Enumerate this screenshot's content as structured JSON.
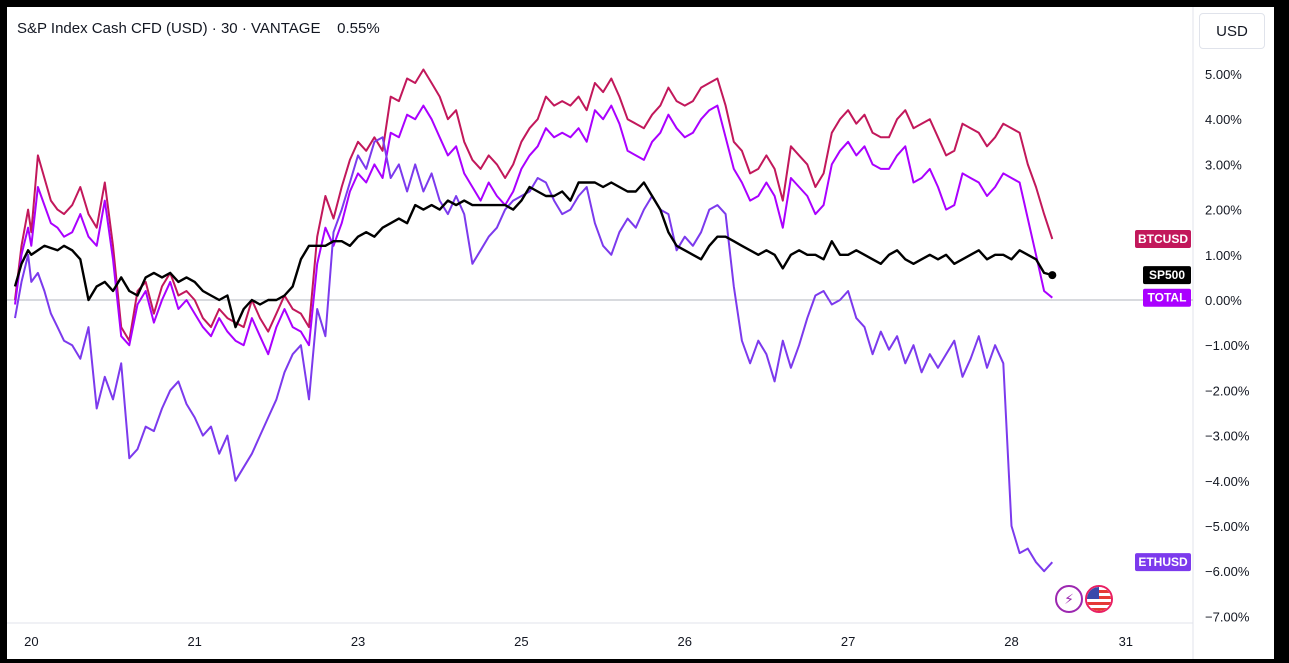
{
  "header": {
    "title": "S&P Index Cash CFD (USD)",
    "interval": "30",
    "exchange": "VANTAGE",
    "change": "0.55%",
    "separator": "·"
  },
  "currency_button": "USD",
  "colors": {
    "background": "#ffffff",
    "frame": "#000000",
    "zero_line": "#b2b5be",
    "axis_border": "#e0e3eb"
  },
  "icons": [
    "lightning-icon",
    "us-flag-icon"
  ],
  "chart_data": {
    "type": "line",
    "title": "S&P Index Cash CFD (USD) · 30 · VANTAGE",
    "yunit": "%",
    "ylim": [
      -7.0,
      5.5
    ],
    "y_ticks": [
      "5.00%",
      "4.00%",
      "3.00%",
      "2.00%",
      "1.00%",
      "0.00%",
      "−1.00%",
      "−2.00%",
      "−3.00%",
      "−4.00%",
      "−5.00%",
      "−6.00%",
      "−7.00%"
    ],
    "y_tick_values": [
      5,
      4,
      3,
      2,
      1,
      0,
      -1,
      -2,
      -3,
      -4,
      -5,
      -6,
      -7
    ],
    "x_ticks": [
      {
        "label": "20",
        "x": 0.3
      },
      {
        "label": "21",
        "x": 1.3
      },
      {
        "label": "23",
        "x": 2.3
      },
      {
        "label": "25",
        "x": 3.3
      },
      {
        "label": "26",
        "x": 4.3
      },
      {
        "label": "27",
        "x": 5.3
      },
      {
        "label": "28",
        "x": 6.3
      },
      {
        "label": "31",
        "x": 7.0
      }
    ],
    "xlim": [
      0.2,
      7.35
    ],
    "grid": false,
    "legend": "right-axis badges",
    "series": [
      {
        "name": "BTCUSD",
        "color": "#c2185b",
        "last": 1.35,
        "x": [
          0.2,
          0.24,
          0.28,
          0.3,
          0.34,
          0.38,
          0.42,
          0.46,
          0.5,
          0.55,
          0.6,
          0.65,
          0.7,
          0.75,
          0.8,
          0.85,
          0.9,
          0.95,
          1.0,
          1.05,
          1.1,
          1.15,
          1.2,
          1.25,
          1.3,
          1.35,
          1.4,
          1.45,
          1.5,
          1.55,
          1.6,
          1.65,
          1.7,
          1.75,
          1.8,
          1.85,
          1.9,
          1.95,
          2.0,
          2.05,
          2.1,
          2.15,
          2.2,
          2.25,
          2.3,
          2.35,
          2.4,
          2.45,
          2.5,
          2.55,
          2.6,
          2.65,
          2.7,
          2.75,
          2.8,
          2.85,
          2.9,
          2.95,
          3.0,
          3.05,
          3.1,
          3.15,
          3.2,
          3.25,
          3.3,
          3.35,
          3.4,
          3.45,
          3.5,
          3.55,
          3.6,
          3.65,
          3.7,
          3.75,
          3.8,
          3.85,
          3.9,
          3.95,
          4.0,
          4.05,
          4.1,
          4.15,
          4.2,
          4.25,
          4.3,
          4.35,
          4.4,
          4.45,
          4.5,
          4.55,
          4.6,
          4.65,
          4.7,
          4.75,
          4.8,
          4.85,
          4.9,
          4.95,
          5.0,
          5.05,
          5.1,
          5.15,
          5.2,
          5.25,
          5.3,
          5.35,
          5.4,
          5.45,
          5.5,
          5.55,
          5.6,
          5.65,
          5.7,
          5.75,
          5.8,
          5.85,
          5.9,
          5.95,
          6.0,
          6.05,
          6.1,
          6.15,
          6.2,
          6.25,
          6.3,
          6.35,
          6.4,
          6.45,
          6.5,
          6.55
        ],
        "values": [
          0.0,
          1.2,
          2.0,
          1.5,
          3.2,
          2.7,
          2.2,
          2.0,
          1.9,
          2.1,
          2.5,
          1.9,
          1.6,
          2.6,
          1.2,
          -0.6,
          -0.9,
          0.2,
          0.4,
          -0.3,
          0.3,
          0.6,
          0.1,
          0.2,
          0.0,
          -0.4,
          -0.6,
          -0.2,
          -0.4,
          -0.5,
          -0.6,
          0.0,
          -0.4,
          -0.7,
          -0.3,
          0.1,
          -0.2,
          -0.3,
          -0.6,
          1.4,
          2.3,
          1.8,
          2.5,
          3.1,
          3.5,
          3.3,
          3.6,
          3.3,
          4.5,
          4.4,
          4.9,
          4.8,
          5.1,
          4.8,
          4.5,
          4.0,
          4.2,
          3.5,
          3.1,
          2.9,
          3.2,
          3.0,
          2.7,
          3.0,
          3.5,
          3.8,
          4.0,
          4.5,
          4.3,
          4.4,
          4.3,
          4.5,
          4.2,
          4.8,
          4.6,
          4.9,
          4.5,
          4.0,
          3.9,
          3.8,
          4.1,
          4.3,
          4.7,
          4.4,
          4.3,
          4.4,
          4.7,
          4.8,
          4.9,
          4.3,
          3.5,
          3.3,
          2.8,
          2.9,
          3.2,
          2.9,
          2.2,
          3.4,
          3.2,
          3.0,
          2.5,
          2.8,
          3.7,
          4.0,
          4.2,
          3.9,
          4.1,
          3.7,
          3.6,
          3.6,
          4.0,
          4.2,
          3.8,
          3.9,
          4.0,
          3.6,
          3.2,
          3.3,
          3.9,
          3.8,
          3.7,
          3.4,
          3.6,
          3.9,
          3.8,
          3.7,
          3.0,
          2.5,
          1.9,
          1.35
        ]
      },
      {
        "name": "TOTAL",
        "color": "#aa00ff",
        "last": 0.05,
        "x": [
          0.2,
          0.24,
          0.28,
          0.3,
          0.34,
          0.38,
          0.42,
          0.46,
          0.5,
          0.55,
          0.6,
          0.65,
          0.7,
          0.75,
          0.8,
          0.85,
          0.9,
          0.95,
          1.0,
          1.05,
          1.1,
          1.15,
          1.2,
          1.25,
          1.3,
          1.35,
          1.4,
          1.45,
          1.5,
          1.55,
          1.6,
          1.65,
          1.7,
          1.75,
          1.8,
          1.85,
          1.9,
          1.95,
          2.0,
          2.05,
          2.1,
          2.15,
          2.2,
          2.25,
          2.3,
          2.35,
          2.4,
          2.45,
          2.5,
          2.55,
          2.6,
          2.65,
          2.7,
          2.75,
          2.8,
          2.85,
          2.9,
          2.95,
          3.0,
          3.05,
          3.1,
          3.15,
          3.2,
          3.25,
          3.3,
          3.35,
          3.4,
          3.45,
          3.5,
          3.55,
          3.6,
          3.65,
          3.7,
          3.75,
          3.8,
          3.85,
          3.9,
          3.95,
          4.0,
          4.05,
          4.1,
          4.15,
          4.2,
          4.25,
          4.3,
          4.35,
          4.4,
          4.45,
          4.5,
          4.55,
          4.6,
          4.65,
          4.7,
          4.75,
          4.8,
          4.85,
          4.9,
          4.95,
          5.0,
          5.05,
          5.1,
          5.15,
          5.2,
          5.25,
          5.3,
          5.35,
          5.4,
          5.45,
          5.5,
          5.55,
          5.6,
          5.65,
          5.7,
          5.75,
          5.8,
          5.85,
          5.9,
          5.95,
          6.0,
          6.05,
          6.1,
          6.15,
          6.2,
          6.25,
          6.3,
          6.35,
          6.4,
          6.45,
          6.5,
          6.55
        ],
        "values": [
          -0.1,
          1.0,
          1.6,
          1.2,
          2.5,
          2.1,
          1.7,
          1.6,
          1.4,
          1.5,
          1.9,
          1.4,
          1.2,
          2.2,
          0.9,
          -0.8,
          -1.0,
          -0.1,
          0.2,
          -0.5,
          0.0,
          0.4,
          -0.2,
          0.0,
          -0.3,
          -0.6,
          -0.8,
          -0.4,
          -0.7,
          -0.9,
          -1.0,
          -0.4,
          -0.8,
          -1.2,
          -0.6,
          -0.2,
          -0.6,
          -0.7,
          -1.0,
          0.8,
          1.6,
          1.2,
          1.7,
          2.4,
          2.8,
          2.6,
          3.0,
          2.7,
          3.7,
          3.6,
          4.1,
          4.0,
          4.3,
          4.0,
          3.6,
          3.2,
          3.4,
          2.8,
          2.5,
          2.2,
          2.6,
          2.3,
          2.1,
          2.4,
          2.9,
          3.2,
          3.4,
          3.8,
          3.6,
          3.7,
          3.6,
          3.8,
          3.5,
          4.2,
          4.0,
          4.3,
          3.9,
          3.3,
          3.2,
          3.1,
          3.5,
          3.7,
          4.1,
          3.8,
          3.6,
          3.7,
          4.0,
          4.2,
          4.3,
          3.6,
          2.9,
          2.6,
          2.2,
          2.3,
          2.6,
          2.3,
          1.6,
          2.7,
          2.5,
          2.3,
          1.9,
          2.1,
          3.0,
          3.3,
          3.5,
          3.2,
          3.4,
          3.0,
          2.9,
          2.9,
          3.2,
          3.4,
          2.6,
          2.7,
          2.9,
          2.5,
          2.0,
          2.1,
          2.8,
          2.7,
          2.6,
          2.3,
          2.5,
          2.8,
          2.7,
          2.6,
          1.8,
          1.0,
          0.2,
          0.05
        ]
      },
      {
        "name": "ETHUSD",
        "color": "#7c3aed",
        "last": -5.8,
        "x": [
          0.2,
          0.24,
          0.28,
          0.3,
          0.34,
          0.38,
          0.42,
          0.46,
          0.5,
          0.55,
          0.6,
          0.65,
          0.7,
          0.75,
          0.8,
          0.85,
          0.9,
          0.95,
          1.0,
          1.05,
          1.1,
          1.15,
          1.2,
          1.25,
          1.3,
          1.35,
          1.4,
          1.45,
          1.5,
          1.55,
          1.6,
          1.65,
          1.7,
          1.75,
          1.8,
          1.85,
          1.9,
          1.95,
          2.0,
          2.05,
          2.1,
          2.15,
          2.2,
          2.25,
          2.3,
          2.35,
          2.4,
          2.45,
          2.5,
          2.55,
          2.6,
          2.65,
          2.7,
          2.75,
          2.8,
          2.85,
          2.9,
          2.95,
          3.0,
          3.05,
          3.1,
          3.15,
          3.2,
          3.25,
          3.3,
          3.35,
          3.4,
          3.45,
          3.5,
          3.55,
          3.6,
          3.65,
          3.7,
          3.75,
          3.8,
          3.85,
          3.9,
          3.95,
          4.0,
          4.05,
          4.1,
          4.15,
          4.2,
          4.25,
          4.3,
          4.35,
          4.4,
          4.45,
          4.5,
          4.55,
          4.6,
          4.65,
          4.7,
          4.75,
          4.8,
          4.85,
          4.9,
          4.95,
          5.0,
          5.05,
          5.1,
          5.15,
          5.2,
          5.25,
          5.3,
          5.35,
          5.4,
          5.45,
          5.5,
          5.55,
          5.6,
          5.65,
          5.7,
          5.75,
          5.8,
          5.85,
          5.9,
          5.95,
          6.0,
          6.05,
          6.1,
          6.15,
          6.2,
          6.25,
          6.3,
          6.35,
          6.4,
          6.45,
          6.5,
          6.55
        ],
        "values": [
          -0.4,
          0.4,
          1.0,
          0.4,
          0.6,
          0.2,
          -0.3,
          -0.6,
          -0.9,
          -1.0,
          -1.3,
          -0.6,
          -2.4,
          -1.7,
          -2.2,
          -1.4,
          -3.5,
          -3.3,
          -2.8,
          -2.9,
          -2.4,
          -2.0,
          -1.8,
          -2.3,
          -2.6,
          -3.0,
          -2.8,
          -3.4,
          -3.0,
          -4.0,
          -3.7,
          -3.4,
          -3.0,
          -2.6,
          -2.2,
          -1.6,
          -1.2,
          -1.0,
          -2.2,
          -0.2,
          -0.8,
          1.5,
          2.0,
          2.6,
          3.2,
          2.9,
          3.5,
          3.6,
          2.7,
          3.0,
          2.4,
          3.0,
          2.4,
          2.8,
          2.2,
          1.9,
          2.3,
          1.9,
          0.8,
          1.1,
          1.4,
          1.6,
          2.0,
          2.2,
          2.3,
          2.4,
          2.7,
          2.6,
          2.2,
          1.9,
          2.0,
          2.3,
          2.5,
          1.7,
          1.2,
          1.0,
          1.5,
          1.8,
          1.6,
          2.0,
          2.3,
          2.0,
          1.9,
          1.1,
          1.4,
          1.2,
          1.5,
          2.0,
          2.1,
          1.9,
          0.3,
          -0.9,
          -1.4,
          -0.9,
          -1.2,
          -1.8,
          -0.9,
          -1.5,
          -1.0,
          -0.4,
          0.1,
          0.2,
          -0.1,
          0.0,
          0.2,
          -0.4,
          -0.6,
          -1.2,
          -0.7,
          -1.1,
          -0.8,
          -1.4,
          -1.0,
          -1.6,
          -1.2,
          -1.5,
          -1.2,
          -0.9,
          -1.7,
          -1.3,
          -0.8,
          -1.5,
          -1.0,
          -1.4,
          -5.0,
          -5.6,
          -5.5,
          -5.8,
          -6.0,
          -5.8
        ]
      },
      {
        "name": "SP500",
        "color": "#000000",
        "last": 0.55,
        "x": [
          0.2,
          0.24,
          0.28,
          0.3,
          0.34,
          0.38,
          0.42,
          0.46,
          0.5,
          0.55,
          0.6,
          0.65,
          0.7,
          0.75,
          0.8,
          0.85,
          0.9,
          0.95,
          1.0,
          1.05,
          1.1,
          1.15,
          1.2,
          1.25,
          1.3,
          1.35,
          1.4,
          1.45,
          1.5,
          1.55,
          1.6,
          1.65,
          1.7,
          1.75,
          1.8,
          1.85,
          1.9,
          1.95,
          2.0,
          2.05,
          2.1,
          2.15,
          2.2,
          2.25,
          2.3,
          2.35,
          2.4,
          2.45,
          2.5,
          2.55,
          2.6,
          2.65,
          2.7,
          2.75,
          2.8,
          2.85,
          2.9,
          2.95,
          3.0,
          3.05,
          3.1,
          3.15,
          3.2,
          3.25,
          3.3,
          3.35,
          3.4,
          3.45,
          3.5,
          3.55,
          3.6,
          3.65,
          3.7,
          3.75,
          3.8,
          3.85,
          3.9,
          3.95,
          4.0,
          4.05,
          4.1,
          4.15,
          4.2,
          4.25,
          4.3,
          4.35,
          4.4,
          4.45,
          4.5,
          4.55,
          4.6,
          4.65,
          4.7,
          4.75,
          4.8,
          4.85,
          4.9,
          4.95,
          5.0,
          5.05,
          5.1,
          5.15,
          5.2,
          5.25,
          5.3,
          5.35,
          5.4,
          5.45,
          5.5,
          5.55,
          5.6,
          5.65,
          5.7,
          5.75,
          5.8,
          5.85,
          5.9,
          5.95,
          6.0,
          6.05,
          6.1,
          6.15,
          6.2,
          6.25,
          6.3,
          6.35,
          6.4,
          6.45,
          6.5,
          6.55
        ],
        "values": [
          0.3,
          0.8,
          1.1,
          1.0,
          1.1,
          1.2,
          1.15,
          1.1,
          1.2,
          1.1,
          0.9,
          0.0,
          0.3,
          0.4,
          0.2,
          0.5,
          0.2,
          0.1,
          0.5,
          0.6,
          0.5,
          0.6,
          0.4,
          0.5,
          0.4,
          0.2,
          0.1,
          0.0,
          0.1,
          -0.6,
          -0.2,
          0.0,
          -0.1,
          0.0,
          0.0,
          0.1,
          0.3,
          0.9,
          1.2,
          1.2,
          1.2,
          1.3,
          1.3,
          1.2,
          1.4,
          1.5,
          1.4,
          1.6,
          1.7,
          1.8,
          1.7,
          2.1,
          2.0,
          2.1,
          2.0,
          2.2,
          2.1,
          2.2,
          2.1,
          2.1,
          2.1,
          2.1,
          2.1,
          2.0,
          2.2,
          2.5,
          2.4,
          2.3,
          2.3,
          2.4,
          2.2,
          2.6,
          2.6,
          2.6,
          2.5,
          2.6,
          2.5,
          2.4,
          2.4,
          2.6,
          2.3,
          2.0,
          1.5,
          1.2,
          1.1,
          1.0,
          0.9,
          1.2,
          1.4,
          1.4,
          1.3,
          1.2,
          1.1,
          1.0,
          1.1,
          1.0,
          0.7,
          1.0,
          1.1,
          1.0,
          1.0,
          0.9,
          1.3,
          1.0,
          1.0,
          1.1,
          1.0,
          0.9,
          0.8,
          1.0,
          1.1,
          0.9,
          0.8,
          0.9,
          1.0,
          0.9,
          1.0,
          0.8,
          0.9,
          1.0,
          1.1,
          0.9,
          1.0,
          1.0,
          0.9,
          1.1,
          1.0,
          0.9,
          0.6,
          0.55
        ]
      }
    ]
  }
}
